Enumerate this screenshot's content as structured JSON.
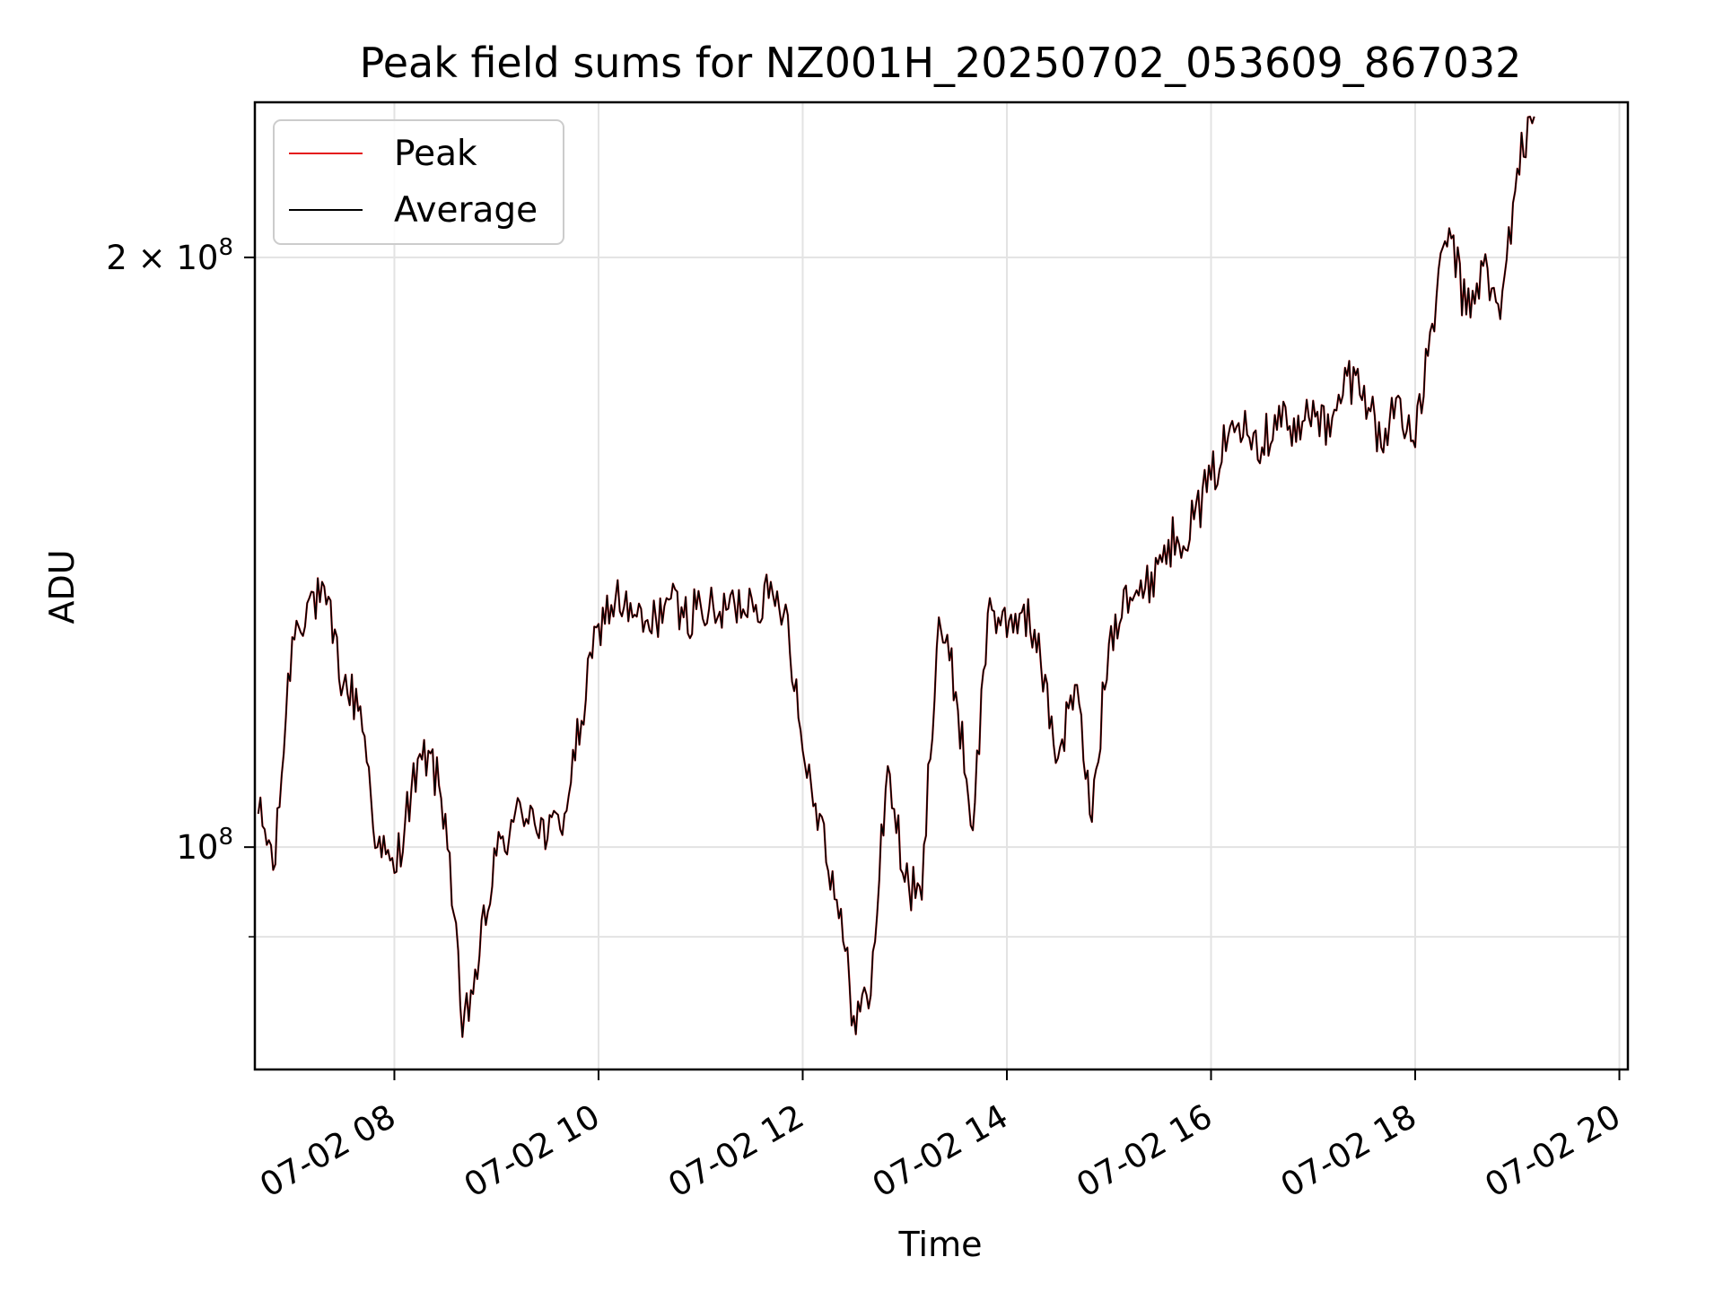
{
  "chart_data": {
    "type": "line",
    "title": "Peak field sums for NZ001H_20250702_053609_867032",
    "xlabel": "Time",
    "ylabel": "ADU",
    "y_scale": "log",
    "ylim": [
      77000000,
      240000000
    ],
    "xlim": [
      "07-02 06:38",
      "07-02 20:05"
    ],
    "grid": true,
    "legend_position": "top-left",
    "x_ticks": [
      "07-02 08",
      "07-02 10",
      "07-02 12",
      "07-02 14",
      "07-02 16",
      "07-02 18",
      "07-02 20"
    ],
    "y_tick_labels": [
      {
        "value": 100000000,
        "base": "10",
        "exp": "8",
        "coef": ""
      },
      {
        "value": 200000000,
        "base": "10",
        "exp": "8",
        "coef": "2 × "
      }
    ],
    "y_minor_ticks": [
      90000000
    ],
    "x": [
      "06:40",
      "06:50",
      "07:00",
      "07:10",
      "07:20",
      "07:30",
      "07:40",
      "07:50",
      "08:00",
      "08:10",
      "08:20",
      "08:30",
      "08:40",
      "08:50",
      "09:00",
      "09:10",
      "09:20",
      "09:30",
      "09:40",
      "09:50",
      "10:00",
      "10:10",
      "10:20",
      "10:30",
      "10:40",
      "10:50",
      "11:00",
      "11:10",
      "11:20",
      "11:30",
      "11:40",
      "11:50",
      "12:00",
      "12:10",
      "12:20",
      "12:30",
      "12:40",
      "12:50",
      "13:00",
      "13:10",
      "13:20",
      "13:30",
      "13:40",
      "13:50",
      "14:00",
      "14:10",
      "14:20",
      "14:30",
      "14:40",
      "14:50",
      "15:00",
      "15:10",
      "15:20",
      "15:30",
      "15:40",
      "15:50",
      "16:00",
      "16:10",
      "16:20",
      "16:30",
      "16:40",
      "16:50",
      "17:00",
      "17:10",
      "17:20",
      "17:30",
      "17:40",
      "17:50",
      "18:00",
      "18:10",
      "18:20",
      "18:30",
      "18:40",
      "18:50",
      "19:00",
      "19:10"
    ],
    "series": [
      {
        "name": "Peak",
        "color": "#e41a1c",
        "values": [
          104,
          98,
          128,
          134,
          133,
          121,
          118,
          100,
          97,
          107,
          112,
          104,
          80,
          88,
          99,
          103,
          105,
          101,
          104,
          116,
          130,
          134,
          131,
          129,
          134,
          131,
          133,
          131,
          133,
          134,
          134,
          133,
          112,
          104,
          94,
          82,
          84,
          110,
          96,
          94,
          131,
          120,
          102,
          134,
          128,
          133,
          124,
          111,
          121,
          103,
          127,
          136,
          134,
          141,
          144,
          147,
          154,
          162,
          167,
          160,
          168,
          161,
          169,
          162,
          174,
          172,
          160,
          170,
          160,
          185,
          207,
          187,
          198,
          186,
          222,
          236
        ]
      },
      {
        "name": "Average",
        "color": "#000000",
        "values": [
          104,
          98,
          128,
          134,
          133,
          121,
          118,
          100,
          97,
          107,
          112,
          104,
          80,
          88,
          99,
          103,
          105,
          101,
          104,
          116,
          130,
          134,
          131,
          129,
          134,
          131,
          133,
          131,
          133,
          134,
          134,
          133,
          112,
          104,
          94,
          82,
          84,
          110,
          96,
          94,
          131,
          120,
          102,
          134,
          128,
          133,
          124,
          111,
          121,
          103,
          127,
          136,
          134,
          141,
          144,
          147,
          154,
          162,
          167,
          160,
          168,
          161,
          169,
          162,
          174,
          172,
          160,
          170,
          160,
          185,
          207,
          187,
          198,
          186,
          222,
          236
        ]
      }
    ]
  }
}
